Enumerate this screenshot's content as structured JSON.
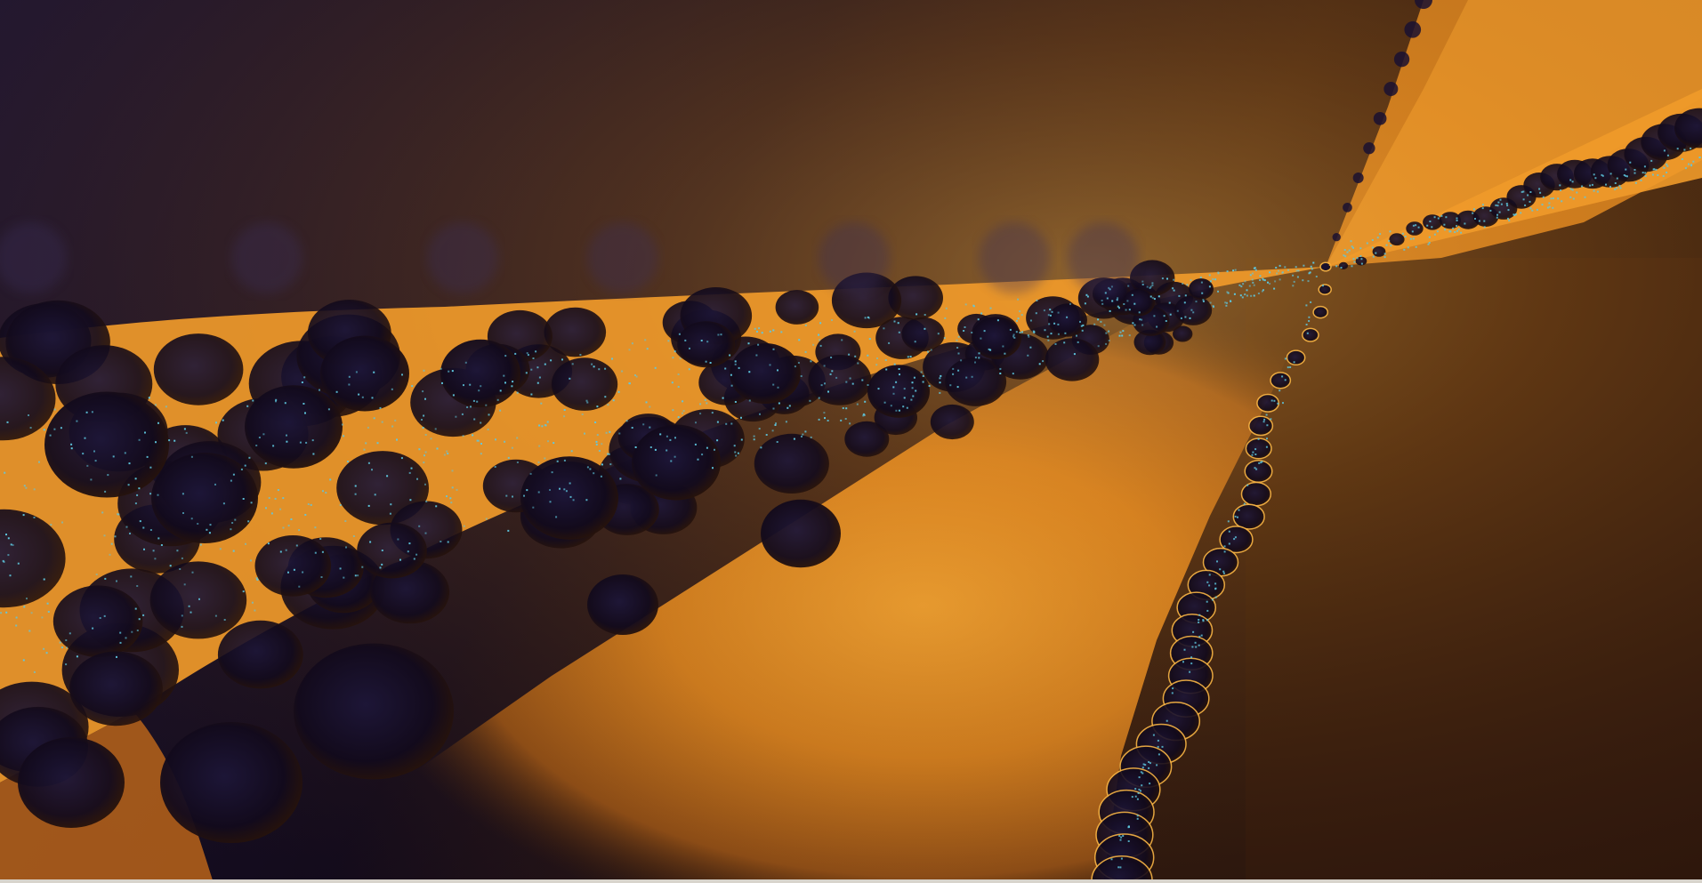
{
  "image": {
    "subject": "fractal-render",
    "palette": {
      "deep_navy": "#1a1230",
      "dark_violet": "#120a1e",
      "dark_brown": "#2a160c",
      "burnt_orange": "#b8641a",
      "bright_orange": "#f09a2a",
      "glow_orange": "#f7b445",
      "cyan_speckle": "#5ec8e0",
      "near_black": "#0b0610"
    }
  }
}
